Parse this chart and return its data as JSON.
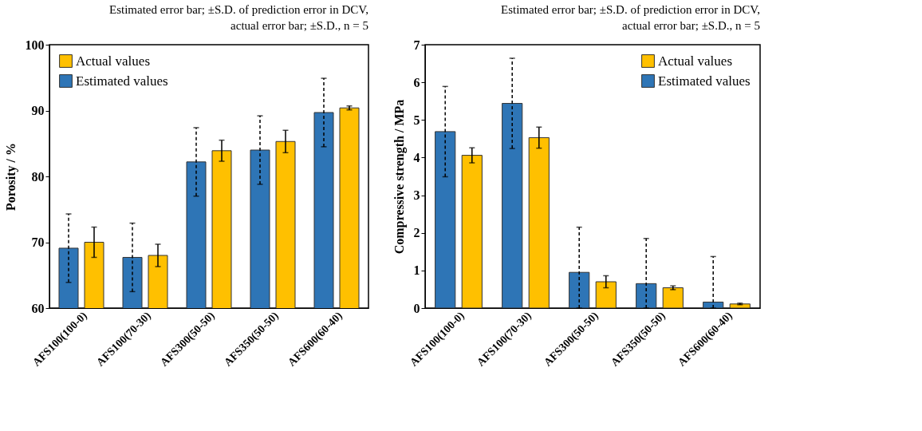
{
  "chart_data": [
    {
      "type": "bar",
      "ylabel": "Porosity / %",
      "categories": [
        "AFS100(100-0)",
        "AFS100(70-30)",
        "AFS300(50-50)",
        "AFS350(50-50)",
        "AFS600(60-40)"
      ],
      "series": [
        {
          "name": "Estimated values",
          "color": "#2e75b6",
          "values": [
            69.1,
            67.7,
            82.2,
            84.0,
            89.7
          ],
          "errors": [
            5.2,
            5.2,
            5.2,
            5.2,
            5.2
          ]
        },
        {
          "name": "Actual values",
          "color": "#ffc000",
          "values": [
            70.0,
            68.0,
            83.9,
            85.3,
            90.4
          ],
          "errors": [
            2.3,
            1.7,
            1.6,
            1.7,
            0.3
          ]
        }
      ],
      "ylim": [
        60,
        100
      ],
      "yticks": [
        60,
        70,
        80,
        90,
        100
      ],
      "legend": "top left",
      "grid": false,
      "annotations": [
        "Estimated error bar; ±S.D. of prediction error in DCV,",
        "actual error bar; ±S.D., n = 5"
      ]
    },
    {
      "type": "bar",
      "ylabel": "Compressive strength / MPa",
      "categories": [
        "AFS100(100-0)",
        "AFS100(70-30)",
        "AFS300(50-50)",
        "AFS350(50-50)",
        "AFS600(60-40)"
      ],
      "series": [
        {
          "name": "Estimated values",
          "color": "#2e75b6",
          "values": [
            4.69,
            5.44,
            0.95,
            0.65,
            0.16
          ],
          "errors": [
            1.2,
            1.2,
            [
              0,
              2.15
            ],
            [
              0,
              1.85
            ],
            [
              0,
              1.37
            ]
          ]
        },
        {
          "name": "Actual values",
          "color": "#ffc000",
          "values": [
            4.06,
            4.53,
            0.7,
            0.54,
            0.11
          ],
          "errors": [
            0.2,
            0.28,
            0.16,
            0.05,
            0.02
          ]
        }
      ],
      "ylim": [
        0,
        7
      ],
      "yticks": [
        0,
        1,
        2,
        3,
        4,
        5,
        6,
        7
      ],
      "legend": "top right",
      "grid": false,
      "annotations": [
        "Estimated error bar; ±S.D. of prediction error in DCV,",
        "actual error bar; ±S.D., n = 5"
      ]
    }
  ]
}
